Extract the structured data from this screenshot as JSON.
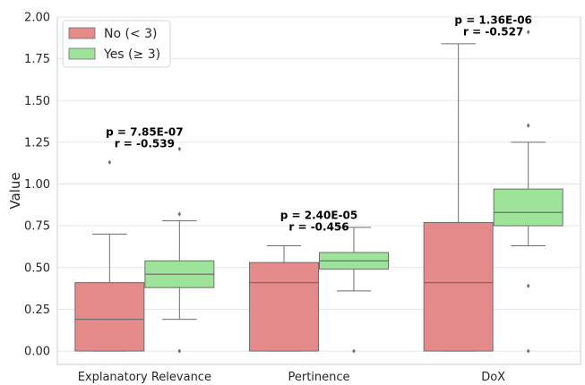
{
  "chart_data": {
    "type": "box",
    "title": "",
    "xlabel": "",
    "ylabel": "Value",
    "ylim": [
      -0.08,
      2.0
    ],
    "yticks": [
      "0.00",
      "0.25",
      "0.50",
      "0.75",
      "1.00",
      "1.25",
      "1.50",
      "1.75",
      "2.00"
    ],
    "categories": [
      "Explanatory Relevance",
      "Pertinence",
      "DoX"
    ],
    "grid": true,
    "legend": {
      "placement": "top-left",
      "entries": [
        "No (< 3)",
        "Yes (≥ 3)"
      ]
    },
    "series": [
      {
        "name": "No (< 3)",
        "color": "#e48a8b",
        "boxes": [
          {
            "whislo": 0.0,
            "q1": 0.0,
            "med": 0.19,
            "q3": 0.41,
            "whishi": 0.7,
            "fliers": [
              1.13
            ]
          },
          {
            "whislo": 0.0,
            "q1": 0.0,
            "med": 0.41,
            "q3": 0.53,
            "whishi": 0.63,
            "fliers": []
          },
          {
            "whislo": 0.0,
            "q1": 0.0,
            "med": 0.41,
            "q3": 0.77,
            "whishi": 1.84,
            "fliers": []
          }
        ]
      },
      {
        "name": "Yes (≥ 3)",
        "color": "#9de49a",
        "boxes": [
          {
            "whislo": 0.19,
            "q1": 0.38,
            "med": 0.46,
            "q3": 0.54,
            "whishi": 0.78,
            "fliers": [
              0.0,
              0.82,
              1.21
            ]
          },
          {
            "whislo": 0.36,
            "q1": 0.49,
            "med": 0.54,
            "q3": 0.59,
            "whishi": 0.74,
            "fliers": [
              0.0
            ]
          },
          {
            "whislo": 0.63,
            "q1": 0.75,
            "med": 0.83,
            "q3": 0.97,
            "whishi": 1.25,
            "fliers": [
              0.0,
              0.39,
              1.35,
              1.91
            ]
          }
        ]
      }
    ],
    "annotations": [
      {
        "category": "Explanatory Relevance",
        "y": 1.29,
        "lines": [
          "p = 7.85E-07",
          "r = -0.539"
        ]
      },
      {
        "category": "Pertinence",
        "y": 0.79,
        "lines": [
          "p = 2.40E-05",
          "r = -0.456"
        ]
      },
      {
        "category": "DoX",
        "y": 1.96,
        "lines": [
          "p = 1.36E-06",
          "r = -0.527"
        ]
      }
    ]
  }
}
